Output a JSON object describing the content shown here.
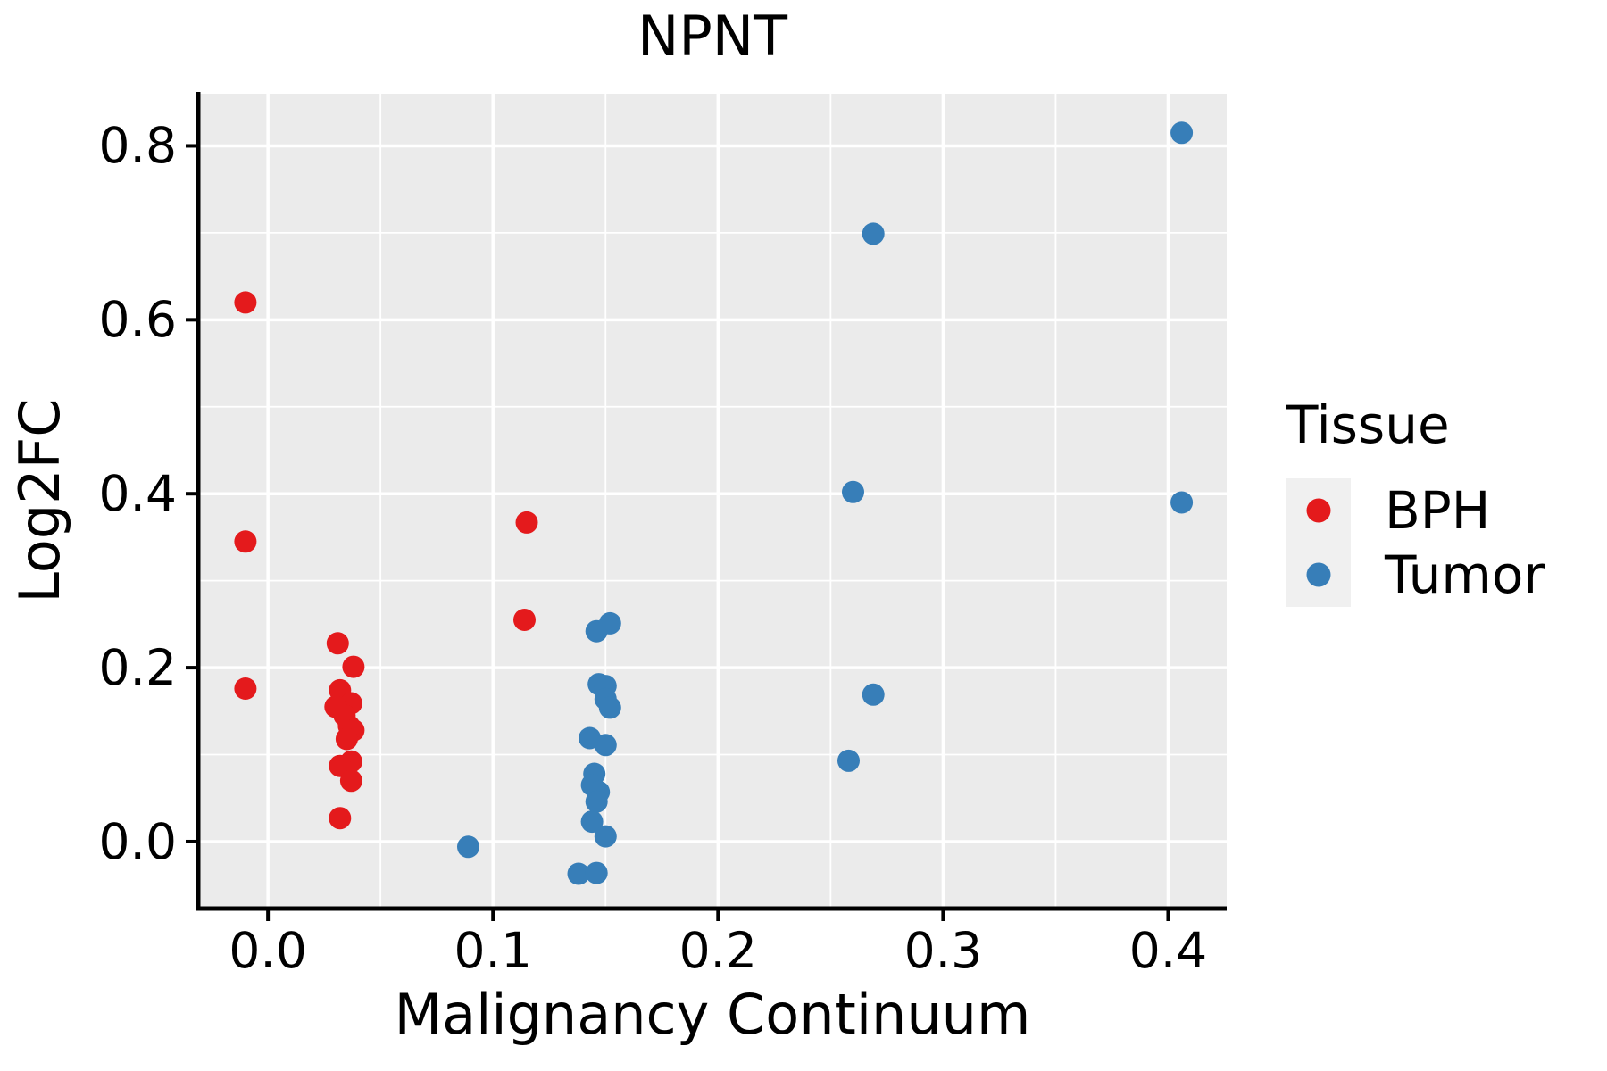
{
  "title": "NPNT",
  "axes": {
    "x_label": "Malignancy Continuum",
    "y_label": "Log2FC"
  },
  "legend": {
    "title": "Tissue",
    "entries": [
      {
        "label": "BPH",
        "color": "#e41a1c"
      },
      {
        "label": "Tumor",
        "color": "#377eb8"
      }
    ]
  },
  "colors": {
    "panel_background": "#ebebeb",
    "grid_line": "#ffffff",
    "axis_line": "#000000",
    "text": "#000000",
    "legend_key_background": "#f0f0f0",
    "bph": "#e41a1c",
    "tumor": "#377eb8"
  },
  "chart_data": {
    "type": "scatter",
    "title": "NPNT",
    "xlabel": "Malignancy Continuum",
    "ylabel": "Log2FC",
    "xlim": [
      -0.031,
      0.426
    ],
    "ylim": [
      -0.077,
      0.86
    ],
    "x_ticks": [
      0.0,
      0.1,
      0.2,
      0.3,
      0.4
    ],
    "y_ticks": [
      0.0,
      0.2,
      0.4,
      0.6,
      0.8
    ],
    "x_minor_breaks": [
      0.05,
      0.15,
      0.25,
      0.35
    ],
    "y_minor_breaks": [
      0.1,
      0.3,
      0.5,
      0.7
    ],
    "grid": true,
    "legend_position": "right",
    "point_radius_px": 12.5,
    "series": [
      {
        "name": "BPH",
        "color": "#e41a1c",
        "points": [
          [
            -0.01,
            0.62
          ],
          [
            -0.01,
            0.345
          ],
          [
            -0.01,
            0.176
          ],
          [
            0.031,
            0.228
          ],
          [
            0.038,
            0.201
          ],
          [
            0.032,
            0.174
          ],
          [
            0.037,
            0.159
          ],
          [
            0.03,
            0.155
          ],
          [
            0.034,
            0.145
          ],
          [
            0.036,
            0.133
          ],
          [
            0.038,
            0.128
          ],
          [
            0.035,
            0.118
          ],
          [
            0.037,
            0.092
          ],
          [
            0.032,
            0.087
          ],
          [
            0.037,
            0.07
          ],
          [
            0.032,
            0.027
          ],
          [
            0.115,
            0.367
          ],
          [
            0.114,
            0.255
          ]
        ]
      },
      {
        "name": "Tumor",
        "color": "#377eb8",
        "points": [
          [
            0.089,
            -0.006
          ],
          [
            0.146,
            0.242
          ],
          [
            0.152,
            0.251
          ],
          [
            0.147,
            0.181
          ],
          [
            0.15,
            0.179
          ],
          [
            0.15,
            0.164
          ],
          [
            0.152,
            0.154
          ],
          [
            0.143,
            0.119
          ],
          [
            0.15,
            0.111
          ],
          [
            0.145,
            0.078
          ],
          [
            0.144,
            0.065
          ],
          [
            0.147,
            0.057
          ],
          [
            0.146,
            0.046
          ],
          [
            0.144,
            0.023
          ],
          [
            0.15,
            0.006
          ],
          [
            0.138,
            -0.037
          ],
          [
            0.146,
            -0.036
          ],
          [
            0.269,
            0.699
          ],
          [
            0.26,
            0.402
          ],
          [
            0.269,
            0.169
          ],
          [
            0.258,
            0.093
          ],
          [
            0.406,
            0.815
          ],
          [
            0.406,
            0.39
          ]
        ]
      }
    ]
  }
}
